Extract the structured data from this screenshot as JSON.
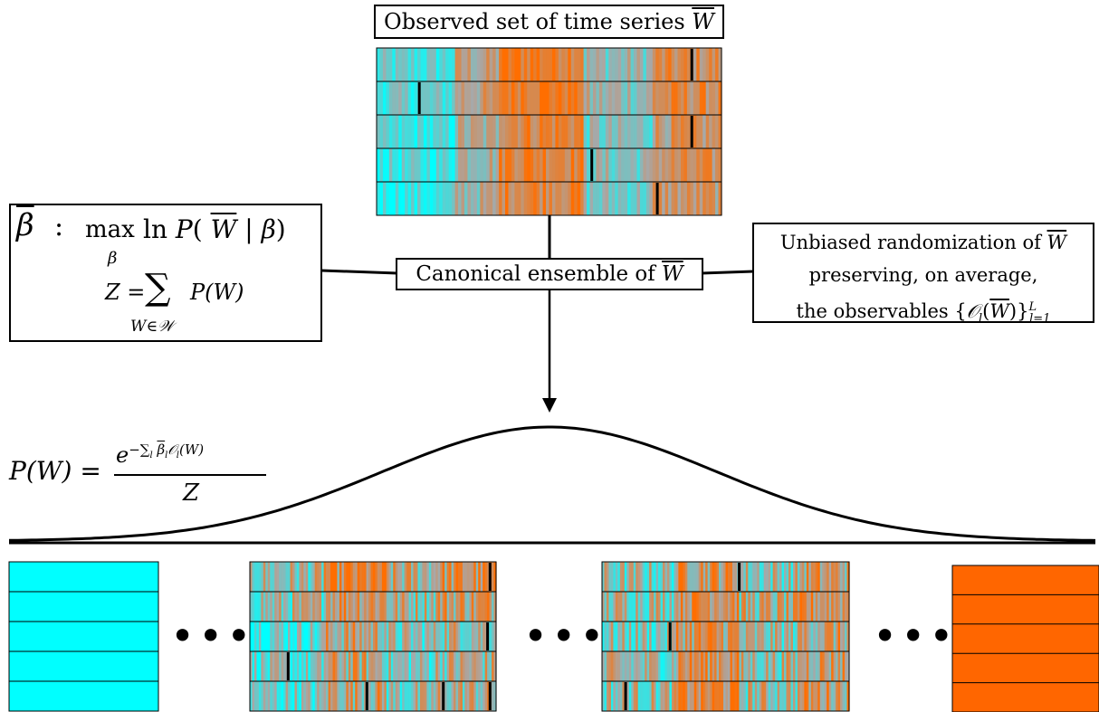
{
  "top_box": {
    "label": "Observed set of time series W"
  },
  "center_box": {
    "label": "Canonical ensemble of W"
  },
  "right_box": {
    "line1": "Unbiased randomization of W",
    "line2": "preserving, on average,",
    "line3": "the observables {𝒪ₗ(W)}ᴸₗ₌₁"
  },
  "left_box": {
    "beta_bar": "β",
    "colon": ":",
    "max": "max",
    "max_sub": "β",
    "objective": "ln P( W | β)",
    "z_lhs": "Z =",
    "sum": "∑",
    "sum_sub": "W∈𝒲",
    "z_rhs": "P(W)"
  },
  "formula": {
    "lhs": "P(W) =",
    "numerator": "e^{−∑ₗ β̄ₗ 𝒪ₗ(W)}",
    "numerator_display": "e",
    "numerator_exp": "−∑ₗ β̄ₗ𝒪ₗ(W)",
    "denominator": "Z"
  },
  "ensemble_samples": {
    "ellipsis": "•••",
    "colors": {
      "cyan": "#00ffff",
      "orange": "#ff6600",
      "gray": "#a8a8a8"
    }
  }
}
